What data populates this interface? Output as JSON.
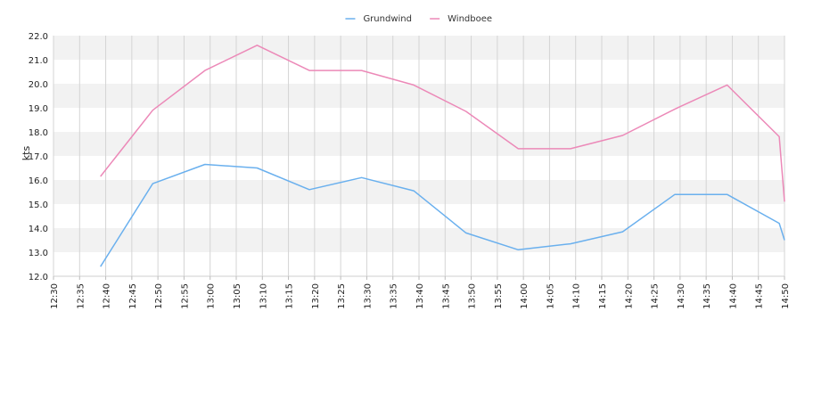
{
  "chart_data": {
    "type": "line",
    "title": "",
    "xlabel": "",
    "ylabel": "kts",
    "ylim": [
      12.0,
      22.0
    ],
    "yticks": [
      "12.0",
      "13.0",
      "14.0",
      "15.0",
      "16.0",
      "17.0",
      "18.0",
      "19.0",
      "20.0",
      "21.0",
      "22.0"
    ],
    "xticks": [
      "12:30",
      "12:35",
      "12:40",
      "12:45",
      "12:50",
      "12:55",
      "13:00",
      "13:05",
      "13:10",
      "13:15",
      "13:20",
      "13:25",
      "13:30",
      "13:35",
      "13:40",
      "13:45",
      "13:50",
      "13:55",
      "14:00",
      "14:05",
      "14:10",
      "14:15",
      "14:20",
      "14:25",
      "14:30",
      "14:35",
      "14:40",
      "14:45",
      "14:50"
    ],
    "x_unit_minutes_from": "12:30",
    "grid": true,
    "legend_position": "top-center",
    "series": [
      {
        "name": "Grundwind",
        "color": "#6ab0ee",
        "x": [
          "12:39",
          "12:49",
          "12:59",
          "13:09",
          "13:19",
          "13:29",
          "13:39",
          "13:49",
          "13:59",
          "14:09",
          "14:19",
          "14:29",
          "14:39",
          "14:49",
          "14:50"
        ],
        "values": [
          12.4,
          15.85,
          16.65,
          16.5,
          15.6,
          16.1,
          15.55,
          13.8,
          13.1,
          13.35,
          13.85,
          15.4,
          15.4,
          14.2,
          13.5
        ]
      },
      {
        "name": "Windboee",
        "color": "#ec89b8",
        "x": [
          "12:39",
          "12:49",
          "12:59",
          "13:09",
          "13:19",
          "13:29",
          "13:39",
          "13:49",
          "13:59",
          "14:09",
          "14:19",
          "14:29",
          "14:39",
          "14:49",
          "14:50"
        ],
        "values": [
          16.15,
          18.9,
          20.55,
          21.6,
          20.55,
          20.55,
          19.95,
          18.85,
          17.3,
          17.3,
          17.85,
          18.95,
          19.95,
          17.8,
          15.1
        ]
      }
    ]
  }
}
